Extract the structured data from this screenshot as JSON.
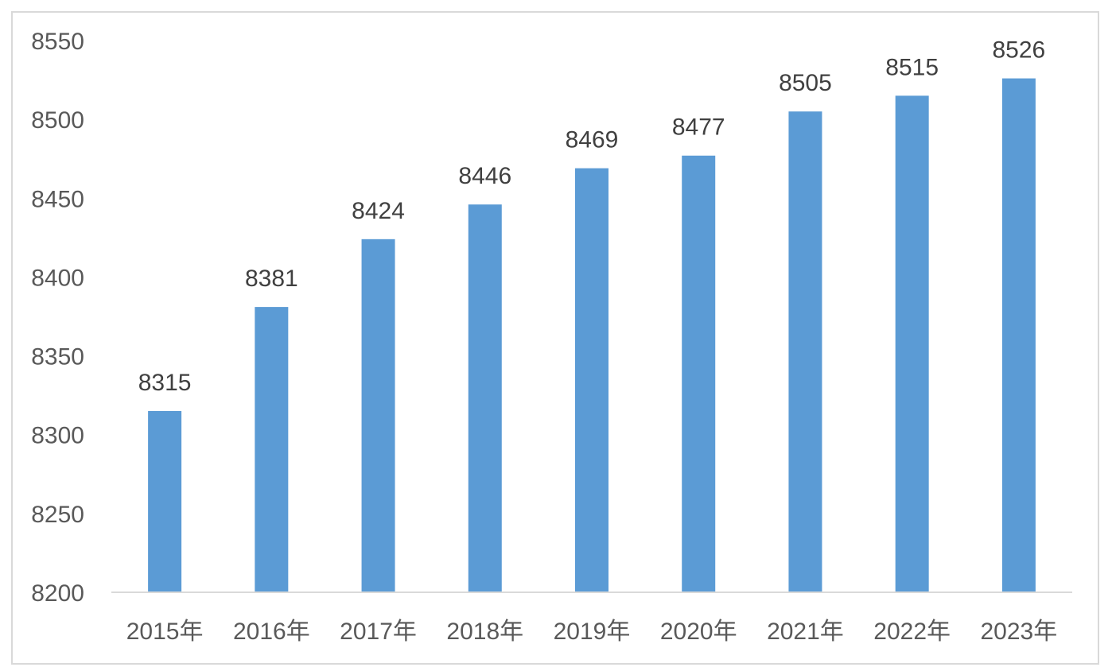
{
  "chart_data": {
    "type": "bar",
    "categories": [
      "2015年",
      "2016年",
      "2017年",
      "2018年",
      "2019年",
      "2020年",
      "2021年",
      "2022年",
      "2023年"
    ],
    "values": [
      8315,
      8381,
      8424,
      8446,
      8469,
      8477,
      8505,
      8515,
      8526
    ],
    "ylim": [
      8200,
      8550
    ],
    "yticks": [
      8200,
      8250,
      8300,
      8350,
      8400,
      8450,
      8500,
      8550
    ],
    "grid": false,
    "data_labels": true,
    "bar_color": "#5b9bd5",
    "axis_color": "#d9d9d9",
    "tick_color": "#595959",
    "label_color": "#404040"
  }
}
